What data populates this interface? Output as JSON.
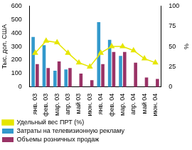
{
  "chart_data": {
    "type": "bar",
    "categories": [
      "янв. 03",
      "фев. 03",
      "мар. 03",
      "апр. 03",
      "май 03",
      "июн. 03",
      "янв. 04",
      "фев. 04",
      "мар. 04",
      "апр. 04",
      "май 04",
      "июн. 04"
    ],
    "y_label": "Тыс. дол. США",
    "y2_label": "%",
    "ylim": [
      0,
      600
    ],
    "yticks": [
      0,
      100,
      200,
      300,
      400,
      500,
      600
    ],
    "y2lim": [
      0,
      100
    ],
    "y2ticks": [
      0,
      25,
      50,
      75,
      100
    ],
    "grid": false,
    "legend": "bottom",
    "series": [
      {
        "name": "Затраты на телевизионную рекламу",
        "type": "bar",
        "color": "#3399cc",
        "values": [
          370,
          310,
          120,
          130,
          null,
          null,
          480,
          350,
          230,
          null,
          null,
          null
        ]
      },
      {
        "name": "Объемы розничных продаж",
        "type": "bar",
        "color": "#993366",
        "values": [
          170,
          140,
          190,
          140,
          100,
          50,
          170,
          260,
          260,
          180,
          70,
          60
        ]
      },
      {
        "name": "Удельный вес ПРТ (%)",
        "type": "line",
        "color": "#e6e600",
        "marker": "triangle",
        "axis": "y2",
        "values": [
          42,
          57,
          55,
          42,
          30,
          25,
          42,
          50,
          50,
          45,
          35,
          30
        ]
      }
    ]
  }
}
